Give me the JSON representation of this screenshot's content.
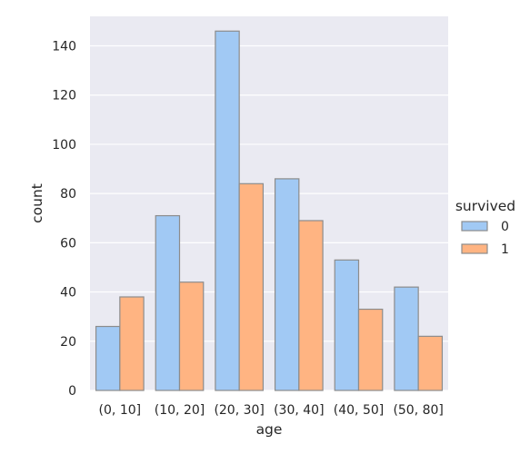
{
  "chart_data": {
    "type": "bar",
    "xlabel": "age",
    "ylabel": "count",
    "categories": [
      "(0, 10]",
      "(10, 20]",
      "(20, 30]",
      "(30, 40]",
      "(40, 50]",
      "(50, 80]"
    ],
    "series": [
      {
        "name": "0",
        "values": [
          26,
          71,
          146,
          86,
          53,
          42
        ],
        "color": "#a1c9f4"
      },
      {
        "name": "1",
        "values": [
          38,
          44,
          84,
          69,
          33,
          22
        ],
        "color": "#ffb482"
      }
    ],
    "ylim": [
      0,
      152
    ],
    "yticks": [
      0,
      20,
      40,
      60,
      80,
      100,
      120,
      140
    ],
    "grid": true,
    "legend": {
      "title": "survived",
      "position": "right"
    },
    "colors": {
      "plot_bg": "#eaeaf2",
      "grid": "#ffffff",
      "bar_edge": "#8c8c8c",
      "text": "#262626"
    }
  }
}
